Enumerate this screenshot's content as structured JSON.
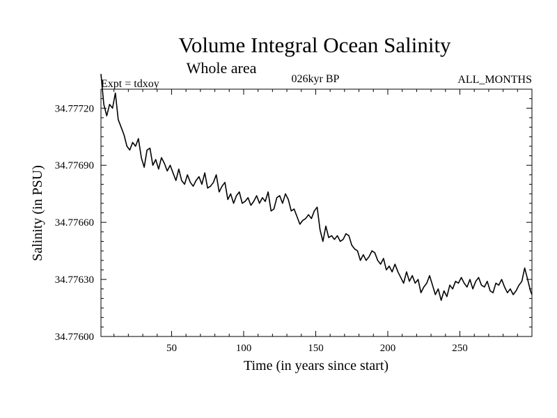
{
  "chart_data": {
    "type": "line",
    "title": "Volume Integral Ocean Salinity",
    "subtitle": "Whole area",
    "header_left": "Expt = tdxoy",
    "header_center": "026kyr BP",
    "header_right": "ALL_MONTHS",
    "xlabel": "Time (in years since start)",
    "ylabel": "Salinity (in PSU)",
    "xlim": [
      1,
      300
    ],
    "ylim": [
      34.776,
      34.7773
    ],
    "xticks": [
      50,
      100,
      150,
      200,
      250
    ],
    "xtick_labels": [
      "50",
      "100",
      "150",
      "200",
      "250"
    ],
    "yticks": [
      34.776,
      34.7763,
      34.7766,
      34.7769,
      34.7772
    ],
    "ytick_labels": [
      "34.77600",
      "34.77630",
      "34.77660",
      "34.77690",
      "34.77720"
    ],
    "grid": false,
    "series": [
      {
        "color": "#000000",
        "x": [
          1,
          3,
          5,
          7,
          9,
          11,
          13,
          15,
          17,
          19,
          21,
          23,
          25,
          27,
          29,
          31,
          33,
          35,
          37,
          39,
          41,
          43,
          45,
          47,
          49,
          51,
          53,
          55,
          57,
          59,
          61,
          63,
          65,
          67,
          69,
          71,
          73,
          75,
          77,
          79,
          81,
          83,
          85,
          87,
          89,
          91,
          93,
          95,
          97,
          99,
          101,
          103,
          105,
          107,
          109,
          111,
          113,
          115,
          117,
          119,
          121,
          123,
          125,
          127,
          129,
          131,
          133,
          135,
          137,
          139,
          141,
          143,
          145,
          147,
          149,
          151,
          153,
          155,
          157,
          159,
          161,
          163,
          165,
          167,
          169,
          171,
          173,
          175,
          177,
          179,
          181,
          183,
          185,
          187,
          189,
          191,
          193,
          195,
          197,
          199,
          201,
          203,
          205,
          207,
          209,
          211,
          213,
          215,
          217,
          219,
          221,
          223,
          225,
          227,
          229,
          231,
          233,
          235,
          237,
          239,
          241,
          243,
          245,
          247,
          249,
          251,
          253,
          255,
          257,
          259,
          261,
          263,
          265,
          267,
          269,
          271,
          273,
          275,
          277,
          279,
          281,
          283,
          285,
          287,
          289,
          291,
          293,
          295,
          297,
          299,
          300
        ],
        "y": [
          34.77738,
          34.77722,
          34.77716,
          34.77722,
          34.7772,
          34.77728,
          34.77714,
          34.7771,
          34.77706,
          34.777,
          34.77698,
          34.77702,
          34.777,
          34.77704,
          34.77694,
          34.77689,
          34.77698,
          34.77699,
          34.7769,
          34.77693,
          34.77688,
          34.77694,
          34.77691,
          34.77687,
          34.7769,
          34.77686,
          34.77682,
          34.77688,
          34.77682,
          34.7768,
          34.77685,
          34.77681,
          34.77679,
          34.77682,
          34.77684,
          34.7768,
          34.77686,
          34.77678,
          34.77679,
          34.77681,
          34.77685,
          34.77676,
          34.77679,
          34.77681,
          34.77672,
          34.77675,
          34.7767,
          34.77674,
          34.77676,
          34.7767,
          34.77671,
          34.77673,
          34.77669,
          34.77671,
          34.77674,
          34.7767,
          34.77673,
          34.77671,
          34.77676,
          34.77666,
          34.77667,
          34.77673,
          34.77674,
          34.7767,
          34.77675,
          34.77672,
          34.77666,
          34.77667,
          34.77663,
          34.77659,
          34.77661,
          34.77662,
          34.77664,
          34.77662,
          34.77666,
          34.77668,
          34.77656,
          34.7765,
          34.77658,
          34.77652,
          34.77653,
          34.77651,
          34.77653,
          34.7765,
          34.77651,
          34.77654,
          34.77653,
          34.77648,
          34.77646,
          34.77645,
          34.7764,
          34.77643,
          34.7764,
          34.77642,
          34.77645,
          34.77644,
          34.7764,
          34.77638,
          34.77641,
          34.77635,
          34.77637,
          34.77634,
          34.77638,
          34.77634,
          34.77631,
          34.77628,
          34.77634,
          34.77629,
          34.77632,
          34.77628,
          34.7763,
          34.77623,
          34.77626,
          34.77628,
          34.77632,
          34.77627,
          34.77622,
          34.77625,
          34.77619,
          34.77624,
          34.77621,
          34.77627,
          34.77625,
          34.77629,
          34.77628,
          34.77631,
          34.77628,
          34.77626,
          34.7763,
          34.77625,
          34.77629,
          34.77631,
          34.77627,
          34.77626,
          34.77629,
          34.77624,
          34.77623,
          34.77628,
          34.77627,
          34.7763,
          34.77626,
          34.77623,
          34.77625,
          34.77622,
          34.77624,
          34.77627,
          34.77629,
          34.77636,
          34.7763,
          34.77624,
          34.77622
        ]
      }
    ]
  }
}
